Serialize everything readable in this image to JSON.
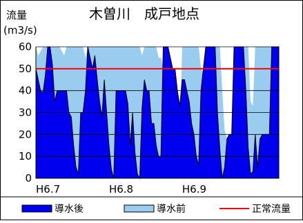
{
  "chart_data": {
    "type": "area",
    "title": "木曽川　成戸地点",
    "ylabel_lines": [
      "流量",
      "(m3/s)"
    ],
    "ylim": [
      0,
      60
    ],
    "y_ticks": [
      "0",
      "10",
      "20",
      "30",
      "40",
      "50",
      "60"
    ],
    "xlim": [
      0,
      103
    ],
    "x_ticks": [
      {
        "label": "H6.7",
        "x": 0
      },
      {
        "label": "H6.8",
        "x": 31
      },
      {
        "label": "H6.9",
        "x": 62
      }
    ],
    "grid": true,
    "legend_position": "bottom",
    "reference_line": {
      "name": "正常流量",
      "value": 50,
      "color": "#ff0000"
    },
    "series": [
      {
        "name": "導水前",
        "color": "#99ccee",
        "x": [
          0,
          1,
          2,
          3,
          4,
          5,
          6,
          7,
          8,
          9,
          10,
          11,
          12,
          13,
          14,
          15,
          16,
          17,
          18,
          19,
          20,
          21,
          22,
          23,
          24,
          25,
          26,
          27,
          28,
          29,
          30,
          31,
          32,
          33,
          34,
          35,
          36,
          37,
          38,
          39,
          40,
          41,
          42,
          43,
          44,
          45,
          46,
          47,
          48,
          49,
          50,
          51,
          52,
          53,
          54,
          55,
          56,
          57,
          58,
          59,
          60,
          61,
          62,
          63,
          64,
          65,
          66,
          67,
          68,
          69,
          70,
          71,
          72,
          73,
          74,
          75,
          76,
          77,
          78,
          79,
          80,
          81,
          82,
          83,
          84,
          85,
          86,
          87,
          88,
          89,
          90,
          91,
          92,
          93,
          94,
          95,
          96,
          97,
          98,
          99,
          100,
          101,
          102,
          103
        ],
        "values": [
          60,
          56,
          58,
          60,
          60,
          60,
          60,
          60,
          60,
          60,
          60,
          58,
          56,
          60,
          60,
          60,
          60,
          60,
          60,
          60,
          60,
          55,
          60,
          60,
          60,
          60,
          60,
          60,
          60,
          60,
          60,
          60,
          60,
          60,
          60,
          60,
          60,
          60,
          60,
          60,
          60,
          60,
          60,
          60,
          60,
          56,
          60,
          60,
          60,
          60,
          60,
          60,
          55,
          55,
          50,
          40,
          30,
          22,
          20,
          14,
          12,
          10,
          60,
          60,
          60,
          60,
          60,
          60,
          60,
          60,
          50,
          48,
          60,
          60,
          60,
          60,
          60,
          60,
          60,
          40,
          22,
          18,
          20,
          20,
          60,
          60,
          60,
          60,
          60,
          60,
          60,
          35,
          33,
          60,
          60,
          60,
          60,
          60,
          60,
          60,
          60,
          60,
          60,
          60
        ]
      },
      {
        "name": "導水後",
        "color": "#0000ee",
        "x": [
          0,
          1,
          2,
          3,
          4,
          5,
          6,
          7,
          8,
          9,
          10,
          11,
          12,
          13,
          14,
          15,
          16,
          17,
          18,
          19,
          20,
          21,
          22,
          23,
          24,
          25,
          26,
          27,
          28,
          29,
          30,
          31,
          32,
          33,
          34,
          35,
          36,
          37,
          38,
          39,
          40,
          41,
          42,
          43,
          44,
          45,
          46,
          47,
          48,
          49,
          50,
          51,
          52,
          53,
          54,
          55,
          56,
          57,
          58,
          59,
          60,
          61,
          62,
          63,
          64,
          65,
          66,
          67,
          68,
          69,
          70,
          71,
          72,
          73,
          74,
          75,
          76,
          77,
          78,
          79,
          80,
          81,
          82,
          83,
          84,
          85,
          86,
          87,
          88,
          89,
          90,
          91,
          92,
          93,
          94,
          95,
          96,
          97,
          98,
          99,
          100,
          101,
          102,
          103
        ],
        "values": [
          50,
          45,
          40,
          39,
          47,
          60,
          60,
          52,
          35,
          40,
          40,
          40,
          40,
          40,
          30,
          28,
          15,
          5,
          2,
          30,
          30,
          40,
          60,
          55,
          50,
          56,
          45,
          35,
          28,
          45,
          30,
          15,
          4,
          0,
          40,
          40,
          40,
          40,
          40,
          34,
          15,
          30,
          12,
          2,
          0,
          32,
          45,
          40,
          40,
          25,
          25,
          15,
          10,
          10,
          60,
          60,
          60,
          55,
          50,
          50,
          40,
          33,
          45,
          45,
          40,
          35,
          25,
          20,
          10,
          6,
          40,
          50,
          60,
          60,
          60,
          60,
          60,
          30,
          13,
          0,
          5,
          18,
          20,
          20,
          60,
          60,
          60,
          60,
          60,
          40,
          14,
          2,
          3,
          20,
          5,
          18,
          20,
          20,
          20,
          20,
          60,
          60,
          60,
          60
        ]
      }
    ]
  }
}
